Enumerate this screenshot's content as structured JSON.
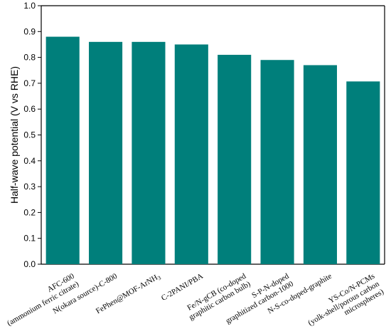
{
  "chart_data": {
    "type": "bar",
    "title": "",
    "xlabel": "",
    "ylabel": "Half-wave potential (V vs RHE)",
    "ylim": [
      0.0,
      1.0
    ],
    "yticks": [
      "0.0",
      "0.1",
      "0.2",
      "0.3",
      "0.4",
      "0.5",
      "0.6",
      "0.7",
      "0.8",
      "0.9",
      "1.0"
    ],
    "grid": false,
    "bar_color": "#007F7B",
    "categories": [
      [
        "AFC-600",
        "(ammonium  ferric citrate)"
      ],
      [
        "N(okara source)-C-800"
      ],
      [
        "FePhen@MOF-ArNH",
        "3"
      ],
      [
        "C-2PANI/PBA"
      ],
      [
        "Fe/N-gCB (co-doped",
        "graphitic carbon bulb)"
      ],
      [
        "S-P-N-doped",
        "graphitized carbon-1000"
      ],
      [
        "N-S-co-doped-graphite"
      ],
      [
        "YS-Co/N-PCMs",
        "(yolk-shell/porous carbon",
        "microspheres)"
      ]
    ],
    "values": [
      0.88,
      0.86,
      0.86,
      0.85,
      0.81,
      0.79,
      0.77,
      0.707
    ]
  }
}
